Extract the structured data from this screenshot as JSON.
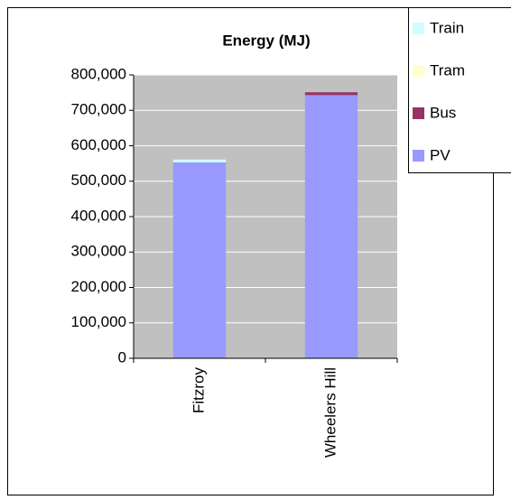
{
  "chart_data": {
    "type": "stacked_bar",
    "title": "Energy (MJ)",
    "categories": [
      "Fitzroy",
      "Wheelers Hill"
    ],
    "series": [
      {
        "name": "PV",
        "color": "#9999ff",
        "values": [
          553000,
          743000
        ]
      },
      {
        "name": "Bus",
        "color": "#993366",
        "values": [
          0,
          8000
        ]
      },
      {
        "name": "Tram",
        "color": "#ffffcc",
        "values": [
          0,
          0
        ]
      },
      {
        "name": "Train",
        "color": "#ccffff",
        "values": [
          8000,
          0
        ]
      }
    ],
    "ylim": [
      0,
      800000
    ],
    "yticks": [
      0,
      {
        "value": 100000,
        "label": "100,000"
      },
      {
        "value": 200000,
        "label": "200,000"
      },
      {
        "value": 300000,
        "label": "300,000"
      },
      {
        "value": 400000,
        "label": "400,000"
      },
      {
        "value": 500000,
        "label": "500,000"
      },
      {
        "value": 600000,
        "label": "600,000"
      },
      {
        "value": 700000,
        "label": "700,000"
      },
      {
        "value": 800000,
        "label": "800,000"
      }
    ],
    "grid": true,
    "legend": "right"
  }
}
